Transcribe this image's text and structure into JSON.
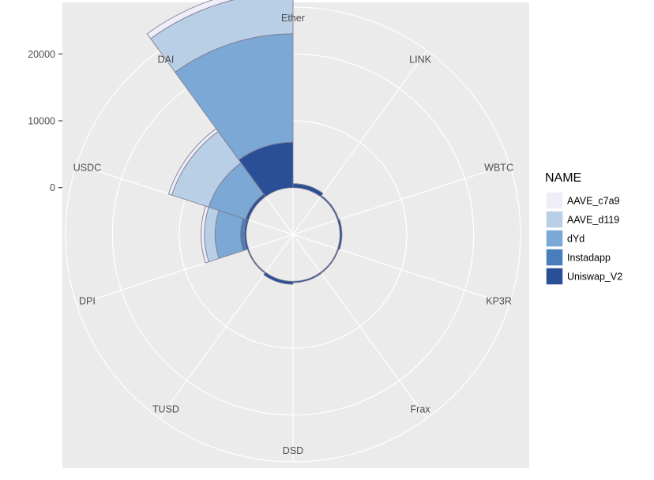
{
  "chart_data": {
    "type": "polar-stacked-bar",
    "categories": [
      "Ether",
      "LINK",
      "WBTC",
      "KP3R",
      "Frax",
      "DSD",
      "TUSD",
      "DPI",
      "USDC",
      "DAI"
    ],
    "series": [
      {
        "name": "Uniswap_V2",
        "color": "#2a4f96",
        "values": [
          6800,
          600,
          200,
          300,
          150,
          200,
          450,
          150,
          300,
          450
        ]
      },
      {
        "name": "Instadapp",
        "color": "#4a7dbb",
        "values": [
          0,
          0,
          0,
          0,
          0,
          0,
          0,
          0,
          550,
          0
        ]
      },
      {
        "name": "dYd",
        "color": "#7ba8d4",
        "values": [
          16200,
          0,
          0,
          0,
          0,
          0,
          0,
          0,
          3800,
          5800
        ]
      },
      {
        "name": "AAVE_d119",
        "color": "#b8cfe5",
        "values": [
          6200,
          0,
          0,
          0,
          0,
          0,
          0,
          0,
          1600,
          5800
        ]
      },
      {
        "name": "AAVE_c7a9",
        "color": "#eeedf8",
        "values": [
          900,
          0,
          0,
          0,
          0,
          0,
          0,
          0,
          500,
          500
        ]
      }
    ],
    "title": "",
    "xlabel": "",
    "ylabel": "",
    "ylim": [
      -7000,
      27000
    ],
    "y_ticks": [
      0,
      10000,
      20000
    ],
    "y_tick_labels": [
      "0",
      "10000",
      "20000"
    ],
    "grid": true,
    "legend": {
      "title": "NAME",
      "position": "right",
      "items": [
        "AAVE_c7a9",
        "AAVE_d119",
        "dYd",
        "Instadapp",
        "Uniswap_V2"
      ]
    }
  }
}
